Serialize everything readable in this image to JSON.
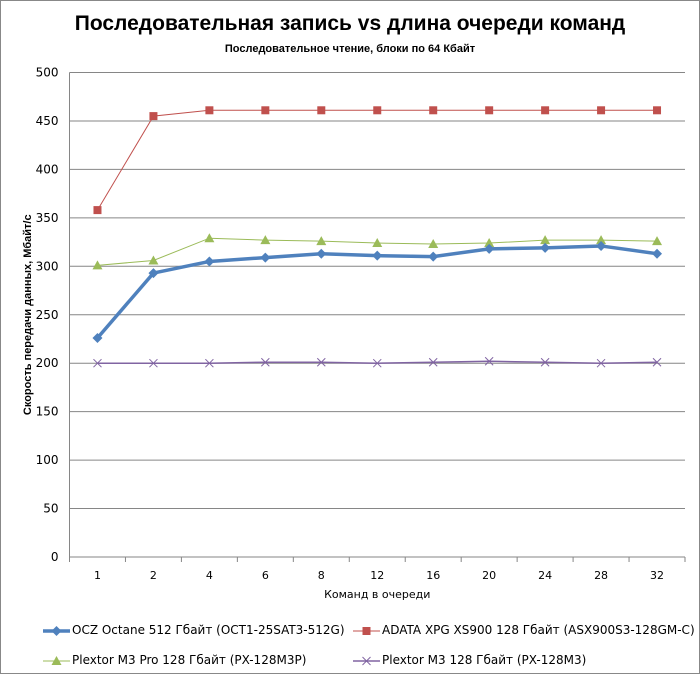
{
  "chart_data": {
    "type": "line",
    "title": "Последовательная запись vs длина очереди команд",
    "subtitle": "Последовательное  чтение, блоки по 64 Кбайт",
    "xlabel": "Команд в очереди",
    "ylabel": "Скорость передачи данных, Мбайт/с",
    "categories": [
      "1",
      "2",
      "4",
      "6",
      "8",
      "12",
      "16",
      "20",
      "24",
      "28",
      "32"
    ],
    "ylim": [
      0,
      500
    ],
    "yticks": [
      0,
      50,
      100,
      150,
      200,
      250,
      300,
      350,
      400,
      450,
      500
    ],
    "grid": true,
    "legend_position": "bottom",
    "series": [
      {
        "name": "OCZ Octane 512 Гбайт (OCT1-25SAT3-512G)",
        "color": "#4f81bd",
        "marker": "diamond",
        "values": [
          226,
          293,
          305,
          309,
          313,
          311,
          310,
          318,
          319,
          321,
          313
        ]
      },
      {
        "name": "ADATA  XPG XS900 128 Гбайт (ASX900S3-128GM-C)",
        "color": "#c0504d",
        "marker": "square",
        "values": [
          358,
          455,
          461,
          461,
          461,
          461,
          461,
          461,
          461,
          461,
          461
        ]
      },
      {
        "name": "Plextor M3 Pro 128 Гбайт (PX-128M3P)",
        "color": "#9bbb59",
        "marker": "triangle",
        "values": [
          301,
          306,
          329,
          327,
          326,
          324,
          323,
          324,
          327,
          327,
          326
        ]
      },
      {
        "name": "Plextor M3 128 Гбайт (PX-128M3)",
        "color": "#8064a2",
        "marker": "x",
        "values": [
          200,
          200,
          200,
          201,
          201,
          200,
          201,
          202,
          201,
          200,
          201
        ]
      }
    ]
  }
}
